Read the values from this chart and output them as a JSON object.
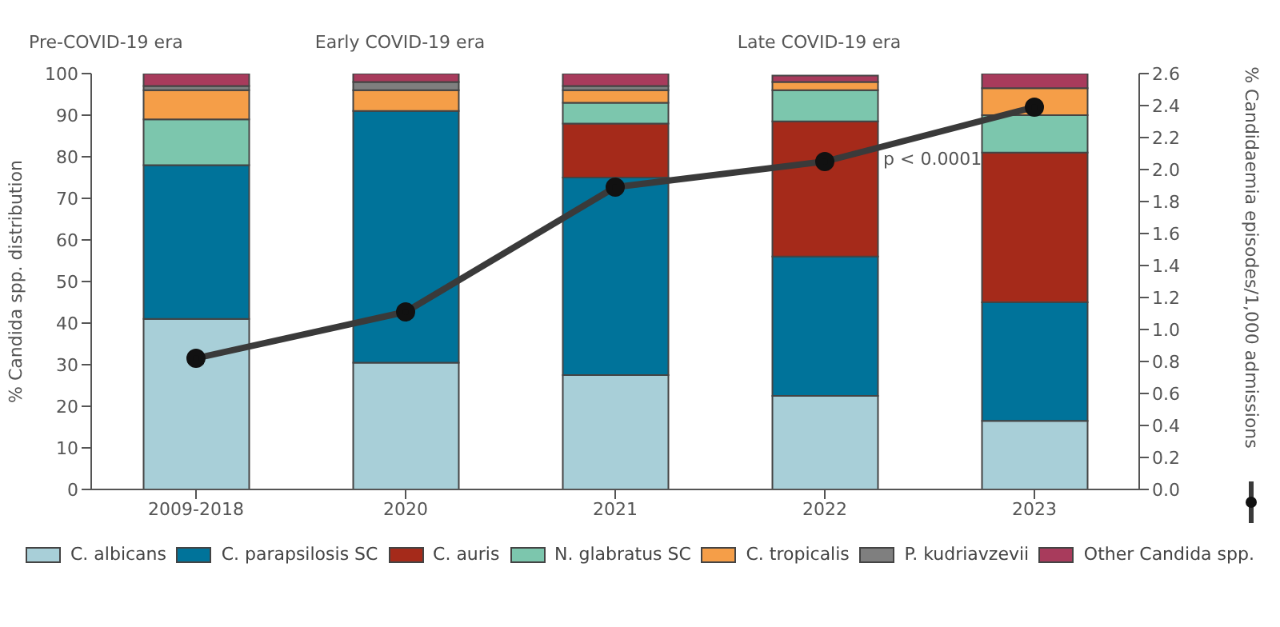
{
  "chart_data": {
    "type": "bar",
    "stacked": true,
    "ylabel": "% Candida spp. distribution",
    "y2label": "% Candidaemia episodes/1,000 admissions",
    "categories": [
      "2009-2018",
      "2020",
      "2021",
      "2022",
      "2023"
    ],
    "series": [
      {
        "name": "C. albicans",
        "color": "#a8cfd8",
        "values": [
          41,
          30.5,
          27.5,
          22.5,
          16.5
        ]
      },
      {
        "name": "C. parapsilosis SC",
        "color": "#00739a",
        "values": [
          37,
          60.5,
          47.5,
          33.5,
          28.5
        ]
      },
      {
        "name": "C. auris",
        "color": "#a52a1a",
        "values": [
          0,
          0,
          13,
          32.5,
          36
        ]
      },
      {
        "name": "N. glabratus SC",
        "color": "#7cc6ad",
        "values": [
          11,
          0,
          5,
          7.5,
          9
        ]
      },
      {
        "name": "C. tropicalis",
        "color": "#f59e48",
        "values": [
          7,
          5,
          3,
          2,
          6.5
        ]
      },
      {
        "name": "P. kudriavzevii",
        "color": "#7f7f7f",
        "values": [
          1,
          2,
          1,
          null,
          0
        ]
      },
      {
        "name": "Other Candida spp.",
        "color": "#a83b5c",
        "values": [
          3,
          2,
          3,
          1.5,
          3.5
        ]
      },
      {
        "type": "line",
        "axis": "y2",
        "color": "#3a3a3a",
        "marker": "circle",
        "values": [
          0.82,
          1.11,
          1.89,
          2.05,
          2.39
        ]
      }
    ],
    "ylim": [
      0,
      100
    ],
    "yticks": [
      0,
      10,
      20,
      30,
      40,
      50,
      60,
      70,
      80,
      90,
      100
    ],
    "y2lim": [
      0,
      2.6
    ],
    "y2ticks": [
      {
        "value": 0,
        "label": "0.0"
      },
      0.2,
      0.4,
      0.6,
      0.8,
      {
        "value": 1,
        "label": "1.0"
      },
      1.2,
      1.4,
      1.6,
      1.8,
      {
        "value": 2,
        "label": "2.0"
      },
      2.2,
      2.4,
      2.6
    ],
    "legend": "bottom",
    "annotations": [
      "Pre-COVID-19 era",
      "Early COVID-19 era",
      "Late COVID-19 era",
      "p < 0.0001"
    ]
  }
}
